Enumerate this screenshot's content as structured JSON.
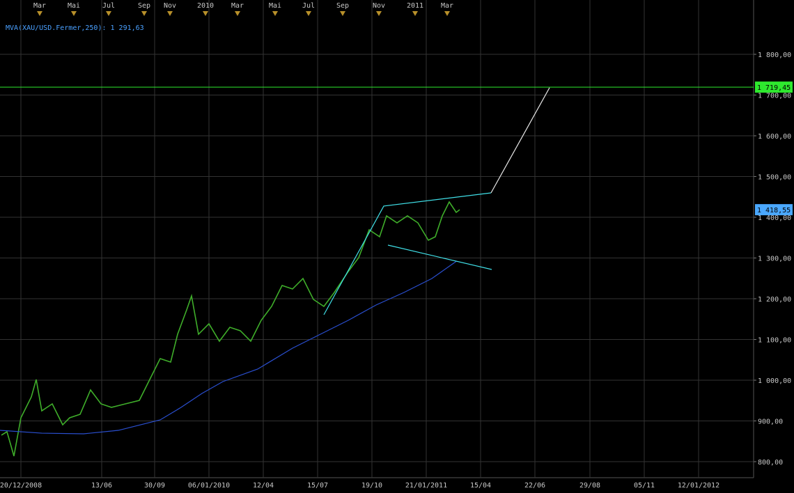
{
  "chart_data": {
    "type": "line",
    "ma_label": "MVA(XAU/USD.Fermer,250): 1 291,63",
    "xlim": [
      0,
      1082
    ],
    "ylim": [
      760.7,
      1933.3
    ],
    "grid": true,
    "yticks": [
      {
        "value": 800,
        "label": "800,00"
      },
      {
        "value": 900,
        "label": "900,00"
      },
      {
        "value": 1000,
        "label": "1 000,00"
      },
      {
        "value": 1100,
        "label": "1 100,00"
      },
      {
        "value": 1200,
        "label": "1 200,00"
      },
      {
        "value": 1300,
        "label": "1 300,00"
      },
      {
        "value": 1400,
        "label": "1 400,00"
      },
      {
        "value": 1500,
        "label": "1 500,00"
      },
      {
        "value": 1600,
        "label": "1 600,00"
      },
      {
        "value": 1700,
        "label": "1 700,00"
      },
      {
        "value": 1800,
        "label": "1 800,00"
      }
    ],
    "xticks": [
      {
        "value": 30,
        "label": "20/12/2008"
      },
      {
        "value": 146,
        "label": "13/06"
      },
      {
        "value": 222,
        "label": "30/09"
      },
      {
        "value": 300,
        "label": "06/01/2010"
      },
      {
        "value": 378,
        "label": "12/04"
      },
      {
        "value": 456,
        "label": "15/07"
      },
      {
        "value": 534,
        "label": "19/10"
      },
      {
        "value": 612,
        "label": "21/01/2011"
      },
      {
        "value": 690,
        "label": "15/04"
      },
      {
        "value": 768,
        "label": "22/06"
      },
      {
        "value": 847,
        "label": "29/08"
      },
      {
        "value": 925,
        "label": "05/11"
      },
      {
        "value": 1003,
        "label": "12/01/2012"
      }
    ],
    "top_ticks": [
      {
        "value": 57,
        "label": "Mar"
      },
      {
        "value": 106,
        "label": "Mai"
      },
      {
        "value": 156,
        "label": "Jul"
      },
      {
        "value": 207,
        "label": "Sep"
      },
      {
        "value": 244,
        "label": "Nov"
      },
      {
        "value": 295,
        "label": "2010"
      },
      {
        "value": 341,
        "label": "Mar"
      },
      {
        "value": 395,
        "label": "Mai"
      },
      {
        "value": 443,
        "label": "Jul"
      },
      {
        "value": 492,
        "label": "Sep"
      },
      {
        "value": 544,
        "label": "Nov"
      },
      {
        "value": 596,
        "label": "2011"
      },
      {
        "value": 642,
        "label": "Mar"
      }
    ],
    "series": [
      {
        "color": "#3fae2a",
        "x": [
          2,
          10,
          20,
          30,
          45,
          52,
          60,
          75,
          90,
          100,
          115,
          130,
          145,
          160,
          180,
          200,
          215,
          230,
          245,
          255,
          268,
          275,
          285,
          300,
          315,
          330,
          345,
          360,
          375,
          390,
          405,
          420,
          435,
          450,
          465,
          480,
          500,
          515,
          530,
          545,
          555,
          570,
          585,
          600,
          615,
          625,
          635,
          645,
          655,
          660
        ],
        "values": [
          865,
          873.5,
          813.7,
          907.7,
          959,
          1001.7,
          924.8,
          941.9,
          890.6,
          907.7,
          916.2,
          976.1,
          941.9,
          933.3,
          941.9,
          950.4,
          1001.7,
          1053,
          1044.4,
          1112.8,
          1172.6,
          1206.8,
          1112.8,
          1138.5,
          1095.7,
          1129.9,
          1121.4,
          1095.7,
          1147,
          1181.2,
          1232.5,
          1223.9,
          1249.6,
          1198.3,
          1181.2,
          1215.4,
          1266.7,
          1300.9,
          1369.2,
          1352.1,
          1403.4,
          1386.3,
          1403.4,
          1386.3,
          1343.6,
          1352.1,
          1403.4,
          1437.6,
          1412,
          1418.55
        ]
      },
      {
        "color": "#2a4fd0",
        "x": [
          0,
          60,
          120,
          170,
          230,
          260,
          290,
          320,
          370,
          420,
          460,
          500,
          540,
          580,
          620,
          655
        ],
        "values": [
          876.9,
          870,
          868.4,
          876.9,
          902.6,
          933.3,
          967.5,
          996.6,
          1027.4,
          1078.6,
          1112.8,
          1147,
          1184.6,
          1215.4,
          1249.6,
          1291.63
        ]
      }
    ],
    "drawings": [
      {
        "color": "#40e0e8",
        "x": [
          465,
          551,
          705
        ],
        "values": [
          1160.7,
          1427.4,
          1459.8
        ]
      },
      {
        "color": "#40e0e8",
        "x": [
          557,
          706
        ],
        "values": [
          1331.6,
          1271.8
        ]
      },
      {
        "color": "#e8e8e8",
        "x": [
          705,
          789
        ],
        "values": [
          1459.8,
          1718
        ]
      }
    ],
    "level": {
      "value": 1719.45,
      "label": "1 719,45",
      "color": "#2ee82e"
    },
    "last_price": {
      "value": 1418.55,
      "label": "1 418,55",
      "color": "#4aa8ff"
    }
  }
}
